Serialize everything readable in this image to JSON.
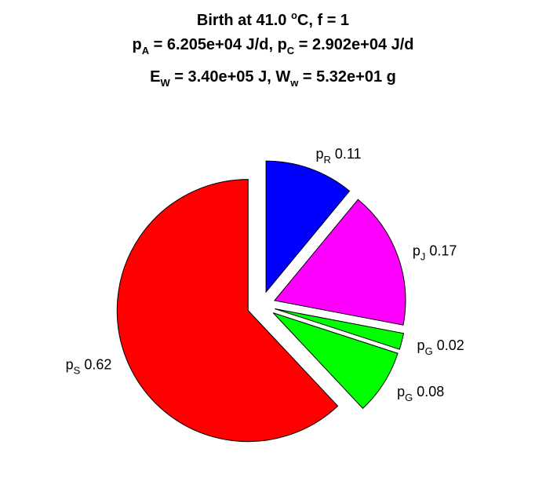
{
  "chart_data": {
    "type": "pie",
    "title": {
      "line1": {
        "pre": "Birth at 41.0 ",
        "sup": "o",
        "post": "C, f = 1"
      },
      "line2": {
        "a": "p",
        "a_sub": "A",
        "a_val": " = 6.205e+04 J/d, ",
        "c": "p",
        "c_sub": "C",
        "c_val": " = 2.902e+04 J/d"
      },
      "line3": {
        "e": "E",
        "e_sub": "W",
        "e_val": " = 3.40e+05 J, ",
        "w": "W",
        "w_sub": "w",
        "w_val": " = 5.32e+01 g"
      }
    },
    "slices": [
      {
        "sym": "p",
        "sub": "R",
        "value": 0.11,
        "label": " 0.11",
        "color": "#0000ff"
      },
      {
        "sym": "p",
        "sub": "J",
        "value": 0.17,
        "label": " 0.17",
        "color": "#ff00ff"
      },
      {
        "sym": "p",
        "sub": "G",
        "value": 0.02,
        "label": " 0.02",
        "color": "#00ff00"
      },
      {
        "sym": "p",
        "sub": "G",
        "value": 0.08,
        "label": " 0.08",
        "color": "#00ff00"
      },
      {
        "sym": "p",
        "sub": "S",
        "value": 0.62,
        "label": " 0.62",
        "color": "#ff0000"
      }
    ]
  }
}
